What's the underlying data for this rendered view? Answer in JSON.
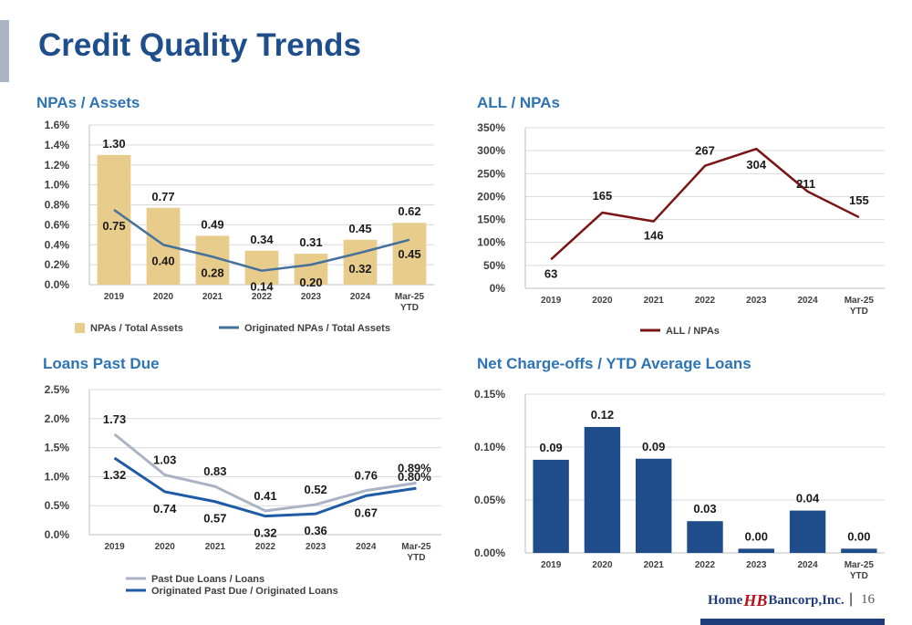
{
  "page": {
    "title": "Credit Quality Trends",
    "page_number": "16",
    "logo": {
      "part1": "Home",
      "part2": "HB",
      "part3": "Bancorp,Inc."
    },
    "colors": {
      "title": "#1f4e8c",
      "panel_title": "#2e74b5",
      "tan_bar": "#e8cc8c",
      "steel_line": "#44709c",
      "maroon_line": "#7b1414",
      "gray_line": "#aab3c3",
      "blue_line": "#1f5aa6",
      "navy_bar": "#1f4c8a"
    }
  },
  "chart_data": [
    {
      "type": "bar",
      "title": "NPAs / Assets",
      "categories": [
        "2019",
        "2020",
        "2021",
        "2022",
        "2023",
        "2024",
        "Mar-25|YTD"
      ],
      "yticks": [
        "0.0%",
        "0.2%",
        "0.4%",
        "0.6%",
        "0.8%",
        "1.0%",
        "1.2%",
        "1.4%",
        "1.6%"
      ],
      "ylim": [
        0,
        1.6
      ],
      "grid": true,
      "legend_position": "bottom",
      "series": [
        {
          "name": "NPAs / Total Assets",
          "type": "bar",
          "values": [
            1.3,
            0.77,
            0.49,
            0.34,
            0.31,
            0.45,
            0.62
          ],
          "labels": [
            "1.30",
            "0.77",
            "0.49",
            "0.34",
            "0.31",
            "0.45",
            "0.62"
          ]
        },
        {
          "name": "Originated NPAs / Total Assets",
          "type": "line",
          "values": [
            0.75,
            0.4,
            0.28,
            0.14,
            0.2,
            0.32,
            0.45
          ],
          "labels": [
            "0.75",
            "0.40",
            "0.28",
            "0.14",
            "0.20",
            "0.32",
            "0.45"
          ]
        }
      ]
    },
    {
      "type": "line",
      "title": "ALL / NPAs",
      "categories": [
        "2019",
        "2020",
        "2021",
        "2022",
        "2023",
        "2024",
        "Mar-25|YTD"
      ],
      "yticks": [
        "0%",
        "50%",
        "100%",
        "150%",
        "200%",
        "250%",
        "300%",
        "350%"
      ],
      "ylim": [
        0,
        350
      ],
      "grid": true,
      "legend_position": "bottom",
      "series": [
        {
          "name": "ALL / NPAs",
          "values": [
            63,
            165,
            146,
            267,
            304,
            211,
            155
          ],
          "labels": [
            "63",
            "165",
            "146",
            "267",
            "304",
            "211",
            "155"
          ]
        }
      ]
    },
    {
      "type": "line",
      "title": "Loans Past Due",
      "categories": [
        "2019",
        "2020",
        "2021",
        "2022",
        "2023",
        "2024",
        "Mar-25|YTD"
      ],
      "yticks": [
        "0.0%",
        "0.5%",
        "1.0%",
        "1.5%",
        "2.0%",
        "2.5%"
      ],
      "ylim": [
        0,
        2.5
      ],
      "grid": true,
      "legend_position": "bottom",
      "series": [
        {
          "name": "Past Due Loans / Loans",
          "values": [
            1.73,
            1.03,
            0.83,
            0.41,
            0.52,
            0.76,
            0.89
          ],
          "labels": [
            "1.73",
            "1.03",
            "0.83",
            "0.41",
            "0.52",
            "0.76",
            "0.89%"
          ]
        },
        {
          "name": "Originated Past Due / Originated Loans",
          "values": [
            1.32,
            0.74,
            0.57,
            0.32,
            0.36,
            0.67,
            0.8
          ],
          "labels": [
            "1.32",
            "0.74",
            "0.57",
            "0.32",
            "0.36",
            "0.67",
            "0.80%"
          ]
        }
      ]
    },
    {
      "type": "bar",
      "title": "Net Charge-offs / YTD Average Loans",
      "categories": [
        "2019",
        "2020",
        "2021",
        "2022",
        "2023",
        "2024",
        "Mar-25|YTD"
      ],
      "yticks": [
        "0.00%",
        "0.05%",
        "0.10%",
        "0.15%"
      ],
      "ylim": [
        0,
        0.15
      ],
      "grid": true,
      "series": [
        {
          "values": [
            0.088,
            0.119,
            0.089,
            0.03,
            0.004,
            0.04,
            0.004
          ],
          "labels": [
            "0.09",
            "0.12",
            "0.09",
            "0.03",
            "0.00",
            "0.04",
            "0.00"
          ]
        }
      ]
    }
  ]
}
